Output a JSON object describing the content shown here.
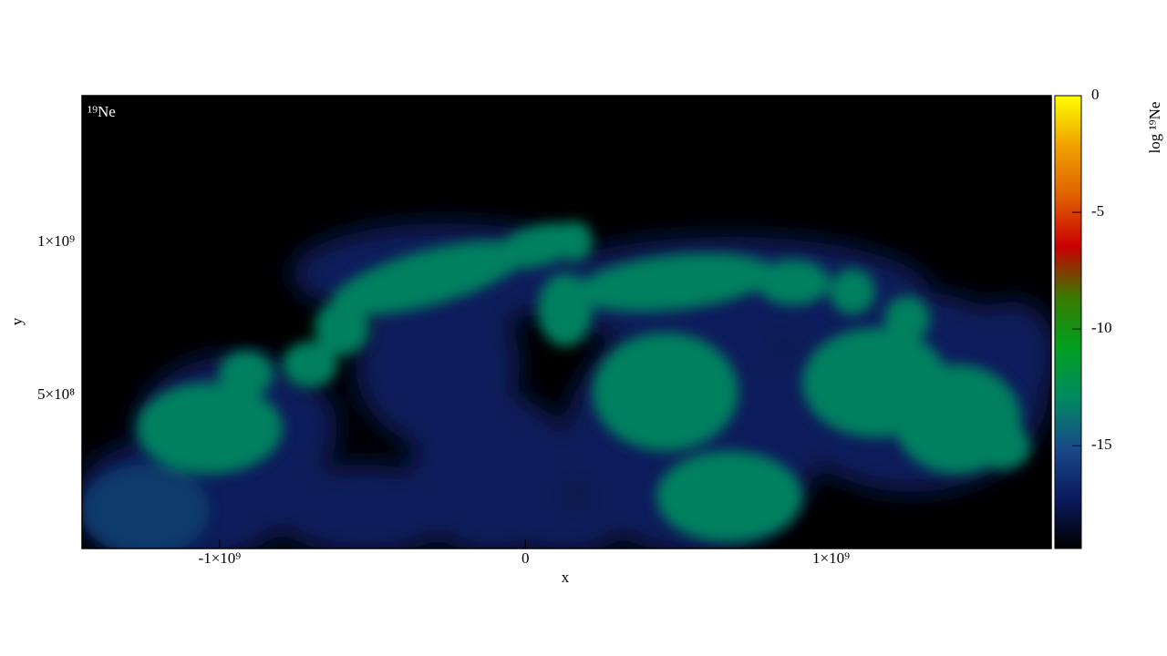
{
  "chart_data": {
    "type": "image",
    "label": "¹⁹Ne",
    "xlabel": "x",
    "ylabel": "y",
    "colorbar_label": "log ¹⁹Ne",
    "xlim": [
      -1450000000,
      1720000000
    ],
    "ylim": [
      0,
      1480000000
    ],
    "xticks": [
      {
        "value": -1000000000,
        "label": "-1×10⁹"
      },
      0,
      {
        "value": 1000000000,
        "label": "1×10⁹"
      }
    ],
    "yticks": [
      {
        "value": 500000000,
        "label": "5×10⁸"
      },
      {
        "value": 1000000000,
        "label": "1×10⁹"
      }
    ],
    "clim": [
      -19.4,
      0
    ],
    "cticks": [
      0,
      -5,
      -10,
      -15
    ],
    "colormap": [
      "#000000",
      "#0b1a5e",
      "#1a4a8a",
      "#008a60",
      "#00a020",
      "#3a7a00",
      "#c80000",
      "#e06000",
      "#f0a000",
      "#ffff00"
    ]
  }
}
